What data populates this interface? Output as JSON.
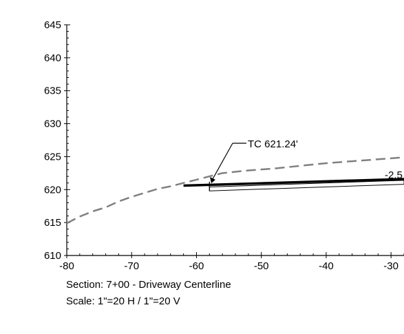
{
  "chart_data": {
    "type": "line",
    "xlim": [
      -80,
      -28
    ],
    "ylim": [
      610,
      645
    ],
    "x_ticks": [
      "-80",
      "-70",
      "-60",
      "-50",
      "-40",
      "-30"
    ],
    "y_ticks": [
      "645",
      "640",
      "635",
      "630",
      "625",
      "620",
      "615",
      "610"
    ],
    "existing_ground": {
      "style": "dashed",
      "color": "#808080",
      "points": [
        [
          -80,
          614.9
        ],
        [
          -78,
          615.9
        ],
        [
          -76,
          616.7
        ],
        [
          -74,
          617.3
        ],
        [
          -72,
          618.2
        ],
        [
          -70,
          618.9
        ],
        [
          -68,
          619.5
        ],
        [
          -66,
          620.1
        ],
        [
          -64,
          620.5
        ],
        [
          -62,
          621.0
        ],
        [
          -60,
          621.5
        ],
        [
          -58,
          622.0
        ],
        [
          -56,
          622.5
        ],
        [
          -52,
          622.9
        ],
        [
          -48,
          623.2
        ],
        [
          -44,
          623.6
        ],
        [
          -40,
          624.0
        ],
        [
          -36,
          624.3
        ],
        [
          -32,
          624.6
        ],
        [
          -28,
          624.9
        ]
      ]
    },
    "proposed_surface": {
      "color": "#000000",
      "top_points": [
        [
          -62,
          620.6
        ],
        [
          -28,
          621.6
        ]
      ],
      "bottom_points": [
        [
          -58,
          619.8
        ],
        [
          -28,
          620.8
        ]
      ]
    },
    "annotations": {
      "tc_label": "TC 621.24'",
      "tc_point": [
        -58.3,
        621.2
      ],
      "grade_label": "-2.5"
    },
    "caption_lines": [
      "Section: 7+00 - Driveway Centerline",
      "Scale: 1\"=20 H / 1\"=20 V"
    ]
  }
}
